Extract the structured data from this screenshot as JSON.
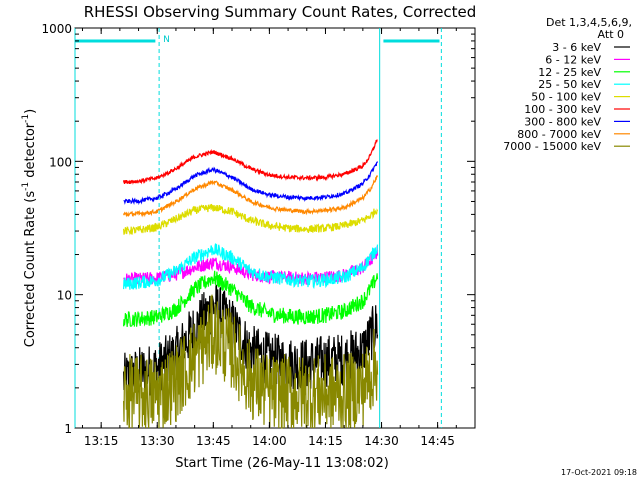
{
  "chart_data": {
    "type": "line",
    "title": "RHESSI Observing Summary Count Rates, Corrected",
    "xlabel": "Start Time (26-May-11 13:08:02)",
    "ylabel": "Corrected Count Rate (s⁻¹ detector⁻¹)",
    "ylabel_parts": {
      "base": "Corrected Count Rate (s",
      "exp1": "-1",
      "mid": " detector",
      "exp2": "-1",
      "end": ")"
    },
    "yscale": "log",
    "ylim": [
      1,
      1000
    ],
    "xlim_min": [
      788,
      895
    ],
    "x_ticks": [
      {
        "min": 795,
        "label": "13:15"
      },
      {
        "min": 810,
        "label": "13:30"
      },
      {
        "min": 825,
        "label": "13:45"
      },
      {
        "min": 840,
        "label": "14:00"
      },
      {
        "min": 855,
        "label": "14:15"
      },
      {
        "min": 870,
        "label": "14:30"
      },
      {
        "min": 885,
        "label": "14:45"
      }
    ],
    "y_ticks": [
      {
        "value": 1,
        "label": "1"
      },
      {
        "value": 10,
        "label": "10"
      },
      {
        "value": 100,
        "label": "100"
      },
      {
        "value": 1000,
        "label": "1000"
      }
    ],
    "legend_header": [
      "Det 1,3,4,5,6,9,",
      "Att 0"
    ],
    "data_start_min": 801,
    "data_end_min": 869,
    "series": [
      {
        "name": "3 - 6 keV",
        "color": "#000000",
        "points": [
          [
            801,
            2.3
          ],
          [
            805,
            2.6
          ],
          [
            810,
            2.8
          ],
          [
            815,
            3.6
          ],
          [
            820,
            5.5
          ],
          [
            825,
            8.3
          ],
          [
            830,
            6.0
          ],
          [
            835,
            3.8
          ],
          [
            840,
            3.3
          ],
          [
            845,
            3.1
          ],
          [
            850,
            3.0
          ],
          [
            855,
            3.2
          ],
          [
            860,
            3.3
          ],
          [
            865,
            3.8
          ],
          [
            867,
            4.8
          ],
          [
            869,
            6.2
          ]
        ],
        "noise": 0.2
      },
      {
        "name": "6 - 12 keV",
        "color": "#ff00ff",
        "points": [
          [
            801,
            13
          ],
          [
            805,
            13.1
          ],
          [
            810,
            13.3
          ],
          [
            815,
            14.2
          ],
          [
            820,
            16
          ],
          [
            825,
            17.5
          ],
          [
            830,
            16.2
          ],
          [
            835,
            14.2
          ],
          [
            840,
            13.6
          ],
          [
            845,
            13.4
          ],
          [
            850,
            13.3
          ],
          [
            855,
            13.5
          ],
          [
            860,
            14
          ],
          [
            865,
            16
          ],
          [
            867,
            18
          ],
          [
            869,
            21
          ]
        ],
        "noise": 0.05
      },
      {
        "name": "12 - 25 keV",
        "color": "#00ff00",
        "points": [
          [
            801,
            6.5
          ],
          [
            805,
            6.6
          ],
          [
            810,
            6.8
          ],
          [
            815,
            7.8
          ],
          [
            820,
            11
          ],
          [
            825,
            13.5
          ],
          [
            830,
            11
          ],
          [
            835,
            8.2
          ],
          [
            840,
            7.2
          ],
          [
            845,
            6.9
          ],
          [
            850,
            6.8
          ],
          [
            855,
            7.0
          ],
          [
            860,
            7.5
          ],
          [
            865,
            9
          ],
          [
            867,
            11
          ],
          [
            869,
            14
          ]
        ],
        "noise": 0.06
      },
      {
        "name": "25 - 50 keV",
        "color": "#00ffff",
        "points": [
          [
            801,
            12
          ],
          [
            805,
            12.3
          ],
          [
            810,
            12.8
          ],
          [
            815,
            15
          ],
          [
            820,
            19
          ],
          [
            825,
            22
          ],
          [
            830,
            19
          ],
          [
            835,
            15
          ],
          [
            840,
            13.6
          ],
          [
            845,
            13
          ],
          [
            850,
            12.6
          ],
          [
            855,
            12.9
          ],
          [
            860,
            13.5
          ],
          [
            865,
            16
          ],
          [
            867,
            19
          ],
          [
            869,
            23
          ]
        ],
        "noise": 0.05
      },
      {
        "name": "50 - 100 keV",
        "color": "#dddd00",
        "points": [
          [
            801,
            30
          ],
          [
            805,
            30.5
          ],
          [
            810,
            32
          ],
          [
            815,
            37
          ],
          [
            820,
            43
          ],
          [
            825,
            45
          ],
          [
            830,
            42
          ],
          [
            835,
            36
          ],
          [
            840,
            33
          ],
          [
            845,
            31.5
          ],
          [
            850,
            31
          ],
          [
            855,
            31.5
          ],
          [
            860,
            33
          ],
          [
            865,
            36
          ],
          [
            867,
            39
          ],
          [
            869,
            44
          ]
        ],
        "noise": 0.03
      },
      {
        "name": "100 - 300 keV",
        "color": "#ff0000",
        "points": [
          [
            801,
            70
          ],
          [
            805,
            71
          ],
          [
            810,
            75
          ],
          [
            815,
            88
          ],
          [
            820,
            108
          ],
          [
            825,
            118
          ],
          [
            830,
            105
          ],
          [
            835,
            88
          ],
          [
            840,
            79
          ],
          [
            845,
            76
          ],
          [
            850,
            75
          ],
          [
            855,
            76
          ],
          [
            860,
            80
          ],
          [
            865,
            92
          ],
          [
            867,
            110
          ],
          [
            869,
            150
          ]
        ],
        "noise": 0.015
      },
      {
        "name": "300 - 800 keV",
        "color": "#0000ff",
        "points": [
          [
            801,
            50
          ],
          [
            805,
            50.5
          ],
          [
            810,
            53
          ],
          [
            815,
            62
          ],
          [
            820,
            78
          ],
          [
            825,
            87
          ],
          [
            830,
            76
          ],
          [
            835,
            62
          ],
          [
            840,
            56
          ],
          [
            845,
            54
          ],
          [
            850,
            53
          ],
          [
            855,
            54
          ],
          [
            860,
            57
          ],
          [
            865,
            68
          ],
          [
            867,
            80
          ],
          [
            869,
            100
          ]
        ],
        "noise": 0.015
      },
      {
        "name": "800 - 7000 keV",
        "color": "#ff8800",
        "points": [
          [
            801,
            40
          ],
          [
            805,
            40.5
          ],
          [
            810,
            42
          ],
          [
            815,
            50
          ],
          [
            820,
            62
          ],
          [
            825,
            70
          ],
          [
            830,
            61
          ],
          [
            835,
            50
          ],
          [
            840,
            45
          ],
          [
            845,
            43
          ],
          [
            850,
            42
          ],
          [
            855,
            43
          ],
          [
            860,
            45
          ],
          [
            865,
            53
          ],
          [
            867,
            62
          ],
          [
            869,
            78
          ]
        ],
        "noise": 0.015
      },
      {
        "name": "7000 - 15000 keV",
        "color": "#888800",
        "points": [
          [
            801,
            1.8
          ],
          [
            805,
            1.8
          ],
          [
            810,
            1.8
          ],
          [
            815,
            2.2
          ],
          [
            820,
            3.4
          ],
          [
            825,
            5.2
          ],
          [
            830,
            3.8
          ],
          [
            835,
            2.3
          ],
          [
            840,
            1.8
          ],
          [
            845,
            1.8
          ],
          [
            850,
            1.8
          ],
          [
            855,
            1.8
          ],
          [
            860,
            1.8
          ],
          [
            865,
            2.0
          ],
          [
            867,
            2.5
          ],
          [
            869,
            3.2
          ]
        ],
        "noise": 0.3
      }
    ],
    "night_markers": [
      {
        "min": 788,
        "label": ""
      },
      {
        "min": 869.5,
        "label": ""
      }
    ],
    "saa_markers": [
      {
        "min": 810.5,
        "label": "N"
      },
      {
        "min": 886,
        "label": ""
      }
    ],
    "night_bars": [
      [
        788,
        809.5
      ],
      [
        870.5,
        885.5
      ]
    ]
  },
  "footer": {
    "timestamp": "17-Oct-2021 09:18"
  }
}
